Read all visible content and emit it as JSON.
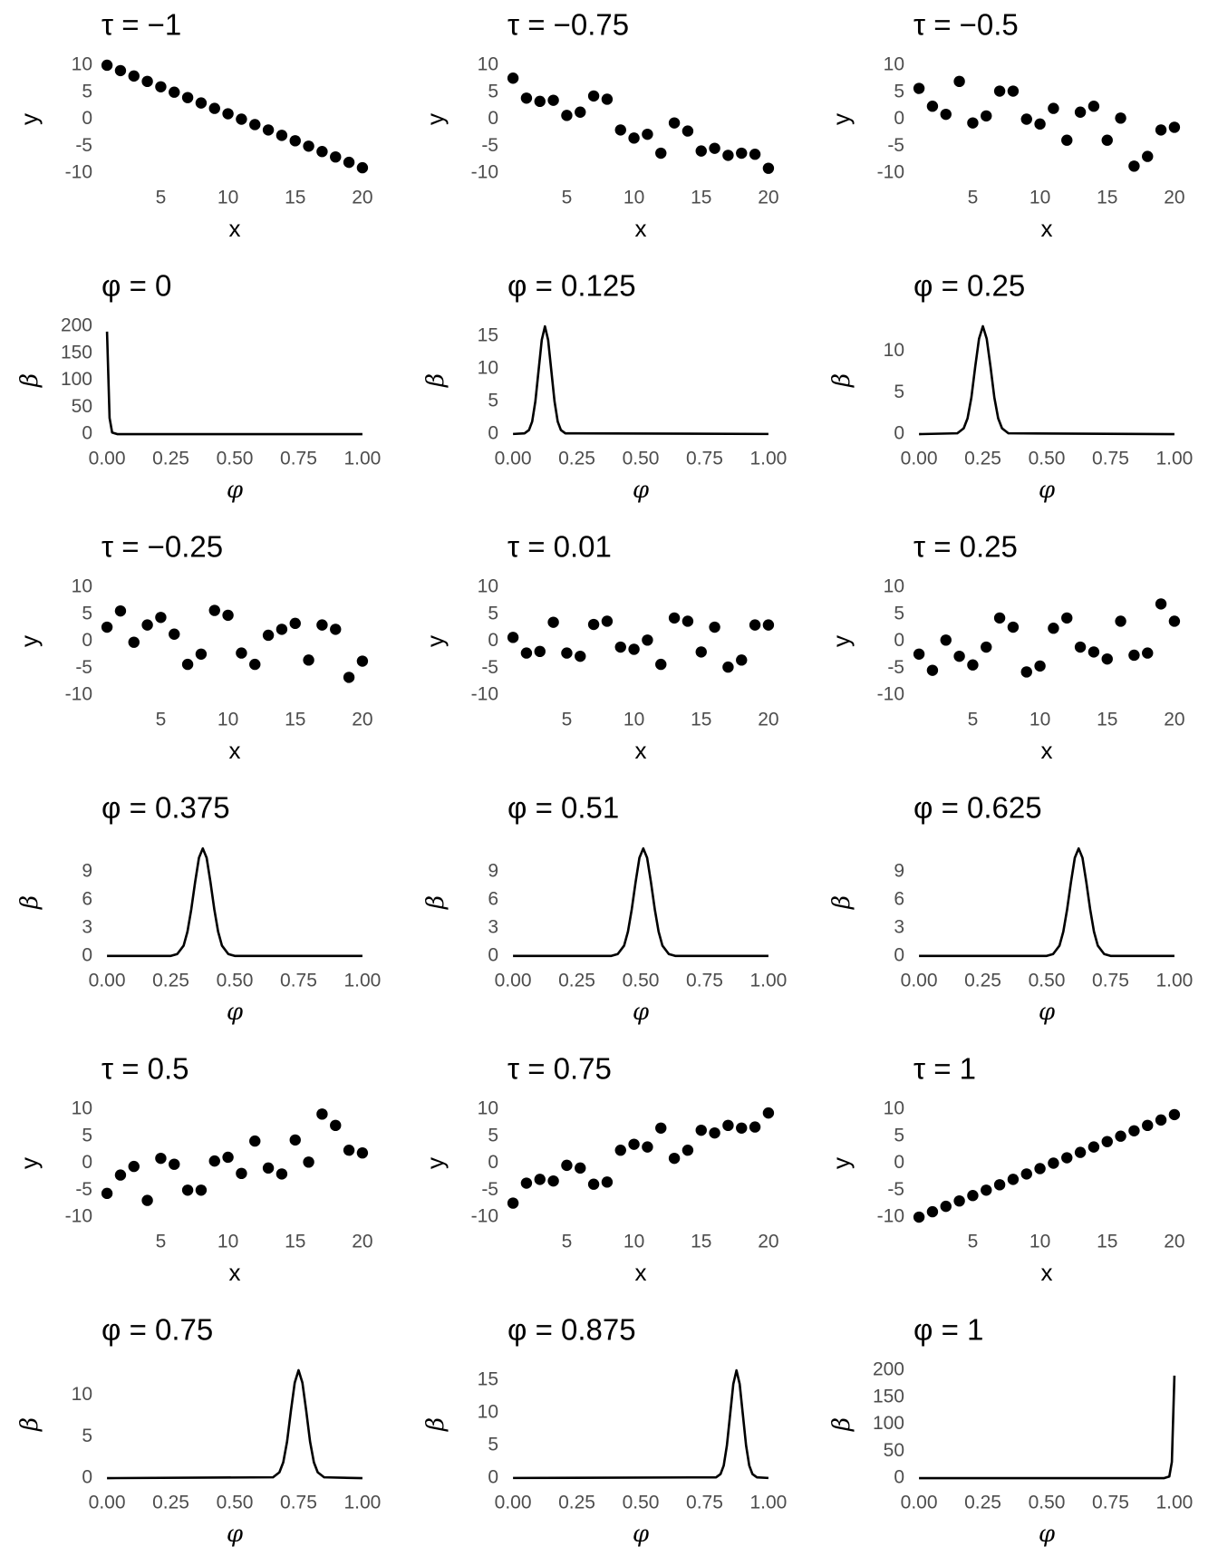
{
  "chart_data": [
    {
      "type": "scatter",
      "title": "τ = −1",
      "x_label": "x",
      "y_label": "y",
      "color": "#000000",
      "x": [
        1,
        2,
        3,
        4,
        5,
        6,
        7,
        8,
        9,
        10,
        11,
        12,
        13,
        14,
        15,
        16,
        17,
        18,
        19,
        20
      ],
      "values": [
        10,
        9,
        8,
        7,
        6,
        5,
        4,
        3,
        2,
        1,
        0,
        -1,
        -2,
        -3,
        -4,
        -5,
        -6,
        -7,
        -8,
        -9
      ],
      "xlim": [
        0.05,
        20.95
      ],
      "ylim": [
        -11,
        11
      ],
      "xticks": [
        5,
        10,
        15,
        20
      ],
      "yticks": [
        -10,
        -5,
        0,
        5,
        10
      ]
    },
    {
      "type": "scatter",
      "title": "τ = −0.75",
      "x_label": "x",
      "y_label": "y",
      "color": "#000000",
      "x": [
        1,
        2,
        3,
        4,
        5,
        6,
        7,
        8,
        9,
        10,
        11,
        12,
        13,
        14,
        15,
        16,
        17,
        18,
        19,
        20
      ],
      "values": [
        7.6,
        3.9,
        3.3,
        3.5,
        0.7,
        1.3,
        4.3,
        3.7,
        -2.0,
        -3.5,
        -2.8,
        -6.3,
        -0.7,
        -2.2,
        -5.9,
        -5.4,
        -6.7,
        -6.3,
        -6.5,
        -9.1
      ],
      "xlim": [
        0.05,
        20.95
      ],
      "ylim": [
        -11,
        11
      ],
      "xticks": [
        5,
        10,
        15,
        20
      ],
      "yticks": [
        -10,
        -5,
        0,
        5,
        10
      ]
    },
    {
      "type": "scatter",
      "title": "τ = −0.5",
      "x_label": "x",
      "y_label": "y",
      "color": "#000000",
      "x": [
        1,
        2,
        3,
        4,
        5,
        6,
        7,
        8,
        9,
        10,
        11,
        12,
        13,
        14,
        15,
        16,
        17,
        18,
        19,
        20
      ],
      "values": [
        5.7,
        2.4,
        0.9,
        7.0,
        -0.7,
        0.6,
        5.2,
        5.2,
        0,
        -0.9,
        2.0,
        -3.9,
        1.3,
        2.4,
        -3.9,
        0.2,
        -8.7,
        -6.9,
        -2.0,
        -1.5
      ],
      "xlim": [
        0.05,
        20.95
      ],
      "ylim": [
        -11,
        11
      ],
      "xticks": [
        5,
        10,
        15,
        20
      ],
      "yticks": [
        -10,
        -5,
        0,
        5,
        10
      ]
    },
    {
      "type": "line",
      "title": "φ = 0",
      "x_label": "φ",
      "y_label": "β",
      "color": "#000000",
      "x": [
        0,
        0.01,
        0.02,
        0.04,
        1
      ],
      "values": [
        190,
        30,
        3,
        0,
        0
      ],
      "xlim": [
        -0.05,
        1.05
      ],
      "ylim": [
        -10,
        210
      ],
      "xticks": [
        {
          "value": 0,
          "label": "0.00"
        },
        0.25,
        {
          "value": 0.5,
          "label": "0.50"
        },
        0.75,
        {
          "value": 1,
          "label": "1.00"
        }
      ],
      "yticks": [
        0,
        50,
        100,
        150,
        200
      ]
    },
    {
      "type": "line",
      "title": "φ = 0.125",
      "x_label": "φ",
      "y_label": "β",
      "color": "#000000",
      "x": [
        0,
        0.045,
        0.0625,
        0.075,
        0.0875,
        0.1,
        0.1125,
        0.125,
        0.1375,
        0.15,
        0.1625,
        0.175,
        0.1875,
        0.205,
        1
      ],
      "values": [
        0,
        0.1,
        0.6,
        1.9,
        5.0,
        9.7,
        14.4,
        16.5,
        14.4,
        9.7,
        5.0,
        1.9,
        0.6,
        0.1,
        0
      ],
      "xlim": [
        -0.05,
        1.05
      ],
      "ylim": [
        -0.85,
        17.35
      ],
      "xticks": [
        {
          "value": 0,
          "label": "0.00"
        },
        0.25,
        {
          "value": 0.5,
          "label": "0.50"
        },
        0.75,
        {
          "value": 1,
          "label": "1.00"
        }
      ],
      "yticks": [
        0,
        5,
        10,
        15
      ]
    },
    {
      "type": "line",
      "title": "φ = 0.25",
      "x_label": "φ",
      "y_label": "β",
      "color": "#000000",
      "x": [
        0,
        0.15,
        0.175,
        0.19,
        0.205,
        0.22,
        0.235,
        0.25,
        0.265,
        0.28,
        0.295,
        0.31,
        0.325,
        0.35,
        1
      ],
      "values": [
        0,
        0.1,
        0.7,
        1.9,
        4.4,
        8.1,
        11.5,
        13,
        11.5,
        8.1,
        4.4,
        1.9,
        0.7,
        0.1,
        0
      ],
      "xlim": [
        -0.05,
        1.05
      ],
      "ylim": [
        -0.65,
        13.65
      ],
      "xticks": [
        {
          "value": 0,
          "label": "0.00"
        },
        0.25,
        {
          "value": 0.5,
          "label": "0.50"
        },
        0.75,
        {
          "value": 1,
          "label": "1.00"
        }
      ],
      "yticks": [
        0,
        5,
        10
      ]
    },
    {
      "type": "scatter",
      "title": "τ = −0.25",
      "x_label": "x",
      "y_label": "y",
      "color": "#000000",
      "x": [
        1,
        2,
        3,
        4,
        5,
        6,
        7,
        8,
        9,
        10,
        11,
        12,
        13,
        14,
        15,
        16,
        17,
        18,
        19,
        20
      ],
      "values": [
        2.6,
        5.6,
        -0.2,
        3.0,
        4.4,
        1.3,
        -4.3,
        -2.4,
        5.7,
        4.8,
        -2.2,
        -4.3,
        1.1,
        2.2,
        3.3,
        -3.5,
        3.0,
        2.2,
        -6.7,
        -3.7
      ],
      "xlim": [
        0.05,
        20.95
      ],
      "ylim": [
        -11,
        11
      ],
      "xticks": [
        5,
        10,
        15,
        20
      ],
      "yticks": [
        -10,
        -5,
        0,
        5,
        10
      ]
    },
    {
      "type": "scatter",
      "title": "τ = 0.01",
      "x_label": "x",
      "y_label": "y",
      "color": "#000000",
      "x": [
        1,
        2,
        3,
        4,
        5,
        6,
        7,
        8,
        9,
        10,
        11,
        12,
        13,
        14,
        15,
        16,
        17,
        18,
        19,
        20
      ],
      "values": [
        0.7,
        -2.2,
        -1.9,
        3.5,
        -2.2,
        -2.8,
        3.1,
        3.7,
        -1.1,
        -1.5,
        0.2,
        -4.3,
        4.3,
        3.7,
        -2.0,
        2.6,
        -4.8,
        -3.5,
        3.0,
        3.0
      ],
      "xlim": [
        0.05,
        20.95
      ],
      "ylim": [
        -11,
        11
      ],
      "xticks": [
        5,
        10,
        15,
        20
      ],
      "yticks": [
        -10,
        -5,
        0,
        5,
        10
      ]
    },
    {
      "type": "scatter",
      "title": "τ = 0.25",
      "x_label": "x",
      "y_label": "y",
      "color": "#000000",
      "x": [
        1,
        2,
        3,
        4,
        5,
        6,
        7,
        8,
        9,
        10,
        11,
        12,
        13,
        14,
        15,
        16,
        17,
        18,
        19,
        20
      ],
      "values": [
        -2.4,
        -5.4,
        0.2,
        -2.8,
        -4.4,
        -1.1,
        4.3,
        2.6,
        -5.7,
        -4.6,
        2.4,
        4.3,
        -1.1,
        -2.0,
        -3.3,
        3.7,
        -2.6,
        -2.2,
        6.9,
        3.7
      ],
      "xlim": [
        0.05,
        20.95
      ],
      "ylim": [
        -11,
        11
      ],
      "xticks": [
        5,
        10,
        15,
        20
      ],
      "yticks": [
        -10,
        -5,
        0,
        5,
        10
      ]
    },
    {
      "type": "line",
      "title": "φ = 0.375",
      "x_label": "φ",
      "y_label": "β",
      "color": "#000000",
      "x": [
        0,
        0.25,
        0.275,
        0.3,
        0.315,
        0.33,
        0.345,
        0.36,
        0.375,
        0.39,
        0.405,
        0.42,
        0.435,
        0.45,
        0.475,
        0.5,
        1
      ],
      "values": [
        0,
        0,
        0.2,
        1.1,
        2.6,
        5.0,
        7.9,
        10.5,
        11.5,
        10.5,
        7.9,
        5.0,
        2.6,
        1.1,
        0.2,
        0,
        0
      ],
      "xlim": [
        -0.05,
        1.05
      ],
      "ylim": [
        -0.6,
        12.1
      ],
      "xticks": [
        {
          "value": 0,
          "label": "0.00"
        },
        0.25,
        {
          "value": 0.5,
          "label": "0.50"
        },
        0.75,
        {
          "value": 1,
          "label": "1.00"
        }
      ],
      "yticks": [
        0,
        3,
        6,
        9
      ]
    },
    {
      "type": "line",
      "title": "φ = 0.51",
      "x_label": "φ",
      "y_label": "β",
      "color": "#000000",
      "x": [
        0,
        0.385,
        0.41,
        0.435,
        0.45,
        0.465,
        0.48,
        0.495,
        0.51,
        0.525,
        0.54,
        0.555,
        0.57,
        0.585,
        0.61,
        0.635,
        1
      ],
      "values": [
        0,
        0,
        0.2,
        1.1,
        2.6,
        5.0,
        7.9,
        10.5,
        11.5,
        10.5,
        7.9,
        5.0,
        2.6,
        1.1,
        0.2,
        0,
        0
      ],
      "xlim": [
        -0.05,
        1.05
      ],
      "ylim": [
        -0.6,
        12.1
      ],
      "xticks": [
        {
          "value": 0,
          "label": "0.00"
        },
        0.25,
        {
          "value": 0.5,
          "label": "0.50"
        },
        0.75,
        {
          "value": 1,
          "label": "1.00"
        }
      ],
      "yticks": [
        0,
        3,
        6,
        9
      ]
    },
    {
      "type": "line",
      "title": "φ = 0.625",
      "x_label": "φ",
      "y_label": "β",
      "color": "#000000",
      "x": [
        0,
        0.5,
        0.525,
        0.55,
        0.565,
        0.58,
        0.595,
        0.61,
        0.625,
        0.64,
        0.655,
        0.67,
        0.685,
        0.7,
        0.725,
        0.75,
        1
      ],
      "values": [
        0,
        0,
        0.2,
        1.1,
        2.6,
        5.0,
        7.9,
        10.5,
        11.5,
        10.5,
        7.9,
        5.0,
        2.6,
        1.1,
        0.2,
        0,
        0
      ],
      "xlim": [
        -0.05,
        1.05
      ],
      "ylim": [
        -0.6,
        12.1
      ],
      "xticks": [
        {
          "value": 0,
          "label": "0.00"
        },
        0.25,
        {
          "value": 0.5,
          "label": "0.50"
        },
        0.75,
        {
          "value": 1,
          "label": "1.00"
        }
      ],
      "yticks": [
        0,
        3,
        6,
        9
      ]
    },
    {
      "type": "scatter",
      "title": "τ = 0.5",
      "x_label": "x",
      "y_label": "y",
      "color": "#000000",
      "x": [
        1,
        2,
        3,
        4,
        5,
        6,
        7,
        8,
        9,
        10,
        11,
        12,
        13,
        14,
        15,
        16,
        17,
        18,
        19,
        20
      ],
      "values": [
        -5.6,
        -2.2,
        -0.6,
        -6.9,
        0.9,
        -0.2,
        -5.0,
        -5.0,
        0.4,
        1.1,
        -1.9,
        4.1,
        -0.9,
        -2.0,
        4.3,
        0.2,
        9.1,
        7.0,
        2.4,
        1.9
      ],
      "xlim": [
        0.05,
        20.95
      ],
      "ylim": [
        -11,
        11
      ],
      "xticks": [
        5,
        10,
        15,
        20
      ],
      "yticks": [
        -10,
        -5,
        0,
        5,
        10
      ]
    },
    {
      "type": "scatter",
      "title": "τ = 0.75",
      "x_label": "x",
      "y_label": "y",
      "color": "#000000",
      "x": [
        1,
        2,
        3,
        4,
        5,
        6,
        7,
        8,
        9,
        10,
        11,
        12,
        13,
        14,
        15,
        16,
        17,
        18,
        19,
        20
      ],
      "values": [
        -7.4,
        -3.7,
        -3.0,
        -3.3,
        -0.4,
        -0.9,
        -3.9,
        -3.5,
        2.4,
        3.5,
        3.0,
        6.5,
        0.9,
        2.4,
        6.1,
        5.6,
        7.0,
        6.5,
        6.7,
        9.3
      ],
      "xlim": [
        0.05,
        20.95
      ],
      "ylim": [
        -11,
        11
      ],
      "xticks": [
        5,
        10,
        15,
        20
      ],
      "yticks": [
        -10,
        -5,
        0,
        5,
        10
      ]
    },
    {
      "type": "scatter",
      "title": "τ = 1",
      "x_label": "x",
      "y_label": "y",
      "color": "#000000",
      "x": [
        1,
        2,
        3,
        4,
        5,
        6,
        7,
        8,
        9,
        10,
        11,
        12,
        13,
        14,
        15,
        16,
        17,
        18,
        19,
        20
      ],
      "values": [
        -10,
        -9,
        -8,
        -7,
        -6,
        -5,
        -4,
        -3,
        -2,
        -1,
        0,
        1,
        2,
        3,
        4,
        5,
        6,
        7,
        8,
        9
      ],
      "xlim": [
        0.05,
        20.95
      ],
      "ylim": [
        -11,
        11
      ],
      "xticks": [
        5,
        10,
        15,
        20
      ],
      "yticks": [
        -10,
        -5,
        0,
        5,
        10
      ]
    },
    {
      "type": "line",
      "title": "φ = 0.75",
      "x_label": "φ",
      "y_label": "β",
      "color": "#000000",
      "x": [
        0,
        0.65,
        0.675,
        0.69,
        0.705,
        0.72,
        0.735,
        0.75,
        0.765,
        0.78,
        0.795,
        0.81,
        0.825,
        0.85,
        1
      ],
      "values": [
        0,
        0.1,
        0.7,
        1.9,
        4.4,
        8.1,
        11.5,
        13,
        11.5,
        8.1,
        4.4,
        1.9,
        0.7,
        0.1,
        0
      ],
      "xlim": [
        -0.05,
        1.05
      ],
      "ylim": [
        -0.65,
        13.65
      ],
      "xticks": [
        {
          "value": 0,
          "label": "0.00"
        },
        0.25,
        {
          "value": 0.5,
          "label": "0.50"
        },
        0.75,
        {
          "value": 1,
          "label": "1.00"
        }
      ],
      "yticks": [
        0,
        5,
        10
      ]
    },
    {
      "type": "line",
      "title": "φ = 0.875",
      "x_label": "φ",
      "y_label": "β",
      "color": "#000000",
      "x": [
        0,
        0.795,
        0.8125,
        0.825,
        0.8375,
        0.85,
        0.8625,
        0.875,
        0.8875,
        0.9,
        0.9125,
        0.925,
        0.9375,
        0.955,
        1
      ],
      "values": [
        0,
        0.1,
        0.6,
        1.9,
        5.0,
        9.7,
        14.4,
        16.5,
        14.4,
        9.7,
        5.0,
        1.9,
        0.6,
        0.1,
        0
      ],
      "xlim": [
        -0.05,
        1.05
      ],
      "ylim": [
        -0.85,
        17.35
      ],
      "xticks": [
        {
          "value": 0,
          "label": "0.00"
        },
        0.25,
        {
          "value": 0.5,
          "label": "0.50"
        },
        0.75,
        {
          "value": 1,
          "label": "1.00"
        }
      ],
      "yticks": [
        0,
        5,
        10,
        15
      ]
    },
    {
      "type": "line",
      "title": "φ = 1",
      "x_label": "φ",
      "y_label": "β",
      "color": "#000000",
      "x": [
        0,
        0.96,
        0.98,
        0.99,
        1
      ],
      "values": [
        0,
        0,
        3,
        30,
        190
      ],
      "xlim": [
        -0.05,
        1.05
      ],
      "ylim": [
        -10,
        210
      ],
      "xticks": [
        {
          "value": 0,
          "label": "0.00"
        },
        0.25,
        {
          "value": 0.5,
          "label": "0.50"
        },
        0.75,
        {
          "value": 1,
          "label": "1.00"
        }
      ],
      "yticks": [
        0,
        50,
        100,
        150,
        200
      ]
    }
  ]
}
